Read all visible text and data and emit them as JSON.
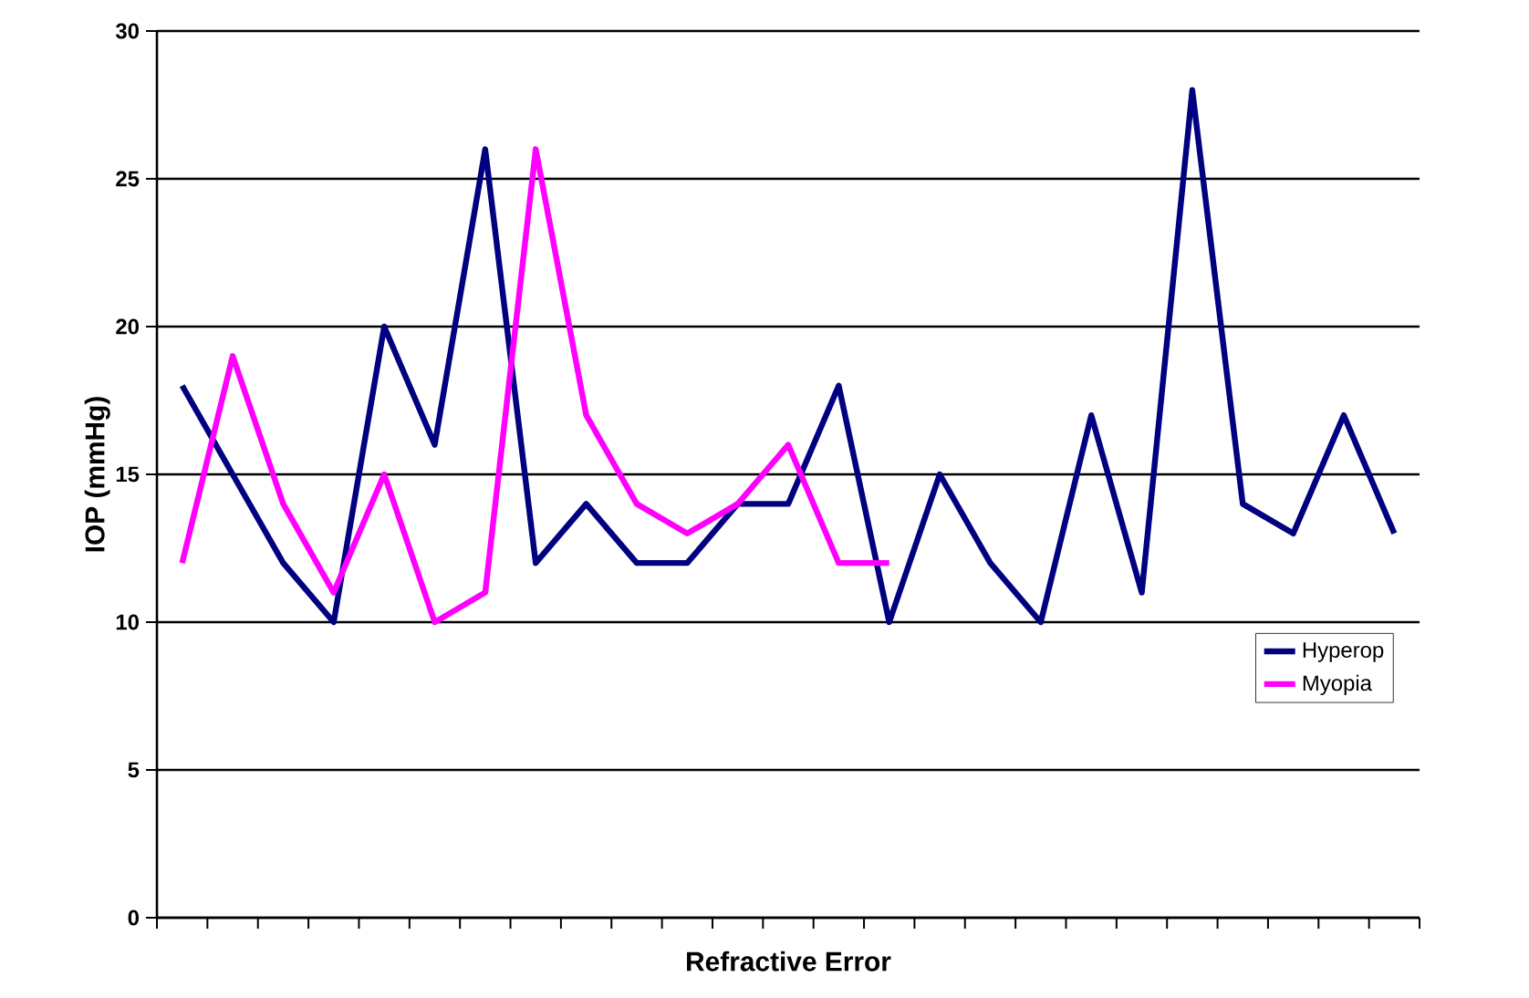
{
  "chart_data": {
    "type": "line",
    "xlabel": "Refractive Error",
    "ylabel": "IOP (mmHg)",
    "categories": [
      null,
      null,
      null,
      null,
      null,
      null,
      null,
      null,
      null,
      null,
      null,
      null,
      null,
      null,
      null,
      null,
      null,
      null,
      null,
      null,
      null,
      null,
      null,
      null,
      null
    ],
    "series": [
      {
        "name": "Hyperop",
        "color": "#000080",
        "values": [
          18,
          15,
          12,
          10,
          20,
          16,
          26,
          12,
          14,
          12,
          12,
          14,
          14,
          18,
          10,
          15,
          12,
          10,
          17,
          11,
          28,
          14,
          13,
          17,
          13
        ]
      },
      {
        "name": "Myopia",
        "color": "#ff00ff",
        "values": [
          12,
          19,
          14,
          11,
          15,
          10,
          11,
          26,
          17,
          14,
          13,
          14,
          16,
          12,
          12,
          null,
          null,
          null,
          null,
          null,
          null,
          null,
          null,
          null,
          null
        ]
      }
    ],
    "ylim": [
      0,
      30
    ],
    "yticks": [
      0,
      5,
      10,
      15,
      20,
      25,
      30
    ],
    "grid": "y",
    "legend": "right",
    "marker": "none",
    "line_style": "solid"
  }
}
